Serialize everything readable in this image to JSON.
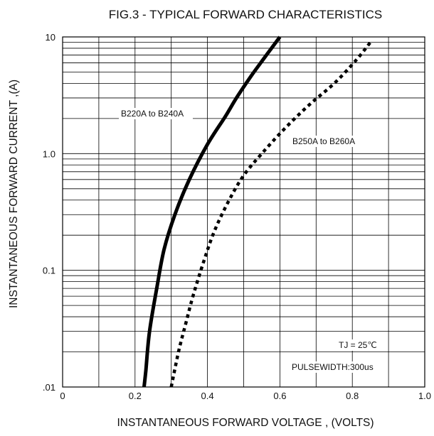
{
  "chart_data": {
    "type": "line",
    "title": "FIG.3 - TYPICAL FORWARD CHARACTERISTICS",
    "xlabel": "INSTANTANEOUS FORWARD VOLTAGE , (VOLTS)",
    "ylabel": "INSTANTANEOUS  FORWARD CURRENT ,(A)",
    "xlim": [
      0,
      1.0
    ],
    "ylim": [
      0.01,
      10
    ],
    "y_scale": "log",
    "x_ticks": [
      "0",
      "0.2",
      "0.4",
      "0.6",
      "0.8",
      "1.0"
    ],
    "x_tick_values": [
      0,
      0.2,
      0.4,
      0.6,
      0.8,
      1.0
    ],
    "y_ticks": [
      ".01",
      "0.1",
      "1.0",
      "10"
    ],
    "y_tick_values": [
      0.01,
      0.1,
      1.0,
      10
    ],
    "grid": true,
    "series": [
      {
        "name": "B220A to B240A",
        "style": "solid",
        "x": [
          0.225,
          0.23,
          0.24,
          0.26,
          0.28,
          0.31,
          0.35,
          0.4,
          0.45,
          0.48,
          0.52,
          0.56,
          0.6
        ],
        "y": [
          0.01,
          0.014,
          0.03,
          0.07,
          0.15,
          0.3,
          0.6,
          1.2,
          2.1,
          3.0,
          4.6,
          6.8,
          10
        ]
      },
      {
        "name": "B250A to B260A",
        "style": "dotted",
        "x": [
          0.3,
          0.32,
          0.34,
          0.36,
          0.39,
          0.42,
          0.46,
          0.5,
          0.55,
          0.61,
          0.68,
          0.75,
          0.81,
          0.85
        ],
        "y": [
          0.01,
          0.02,
          0.035,
          0.06,
          0.12,
          0.22,
          0.4,
          0.65,
          1.0,
          1.6,
          2.6,
          4.0,
          6.3,
          9.0
        ]
      }
    ],
    "annotations": [
      "B220A to B240A",
      "B250A to B260A",
      "TJ = 25℃",
      "PULSEWIDTH:300us"
    ]
  }
}
